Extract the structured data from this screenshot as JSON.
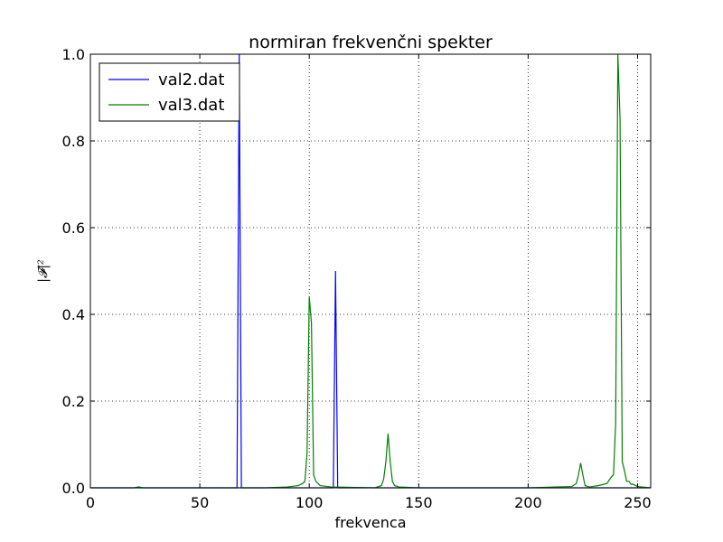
{
  "chart_data": {
    "type": "line",
    "title": "normiran frekvenčni spekter",
    "xlabel": "frekvenca",
    "ylabel": "|𝓕|²",
    "xlim": [
      0,
      256
    ],
    "ylim": [
      0,
      1.0
    ],
    "xticks": [
      0,
      50,
      100,
      150,
      200,
      250
    ],
    "yticks": [
      0.0,
      0.2,
      0.4,
      0.6,
      0.8,
      1.0
    ],
    "xtick_labels": [
      "0",
      "50",
      "100",
      "150",
      "200",
      "250"
    ],
    "ytick_labels": [
      "0.0",
      "0.2",
      "0.4",
      "0.6",
      "0.8",
      "1.0"
    ],
    "grid": true,
    "legend": "top-left",
    "series": [
      {
        "name": "val2.dat",
        "color": "#0000ff",
        "x": [
          0,
          66,
          67,
          68,
          69,
          70,
          110,
          111,
          112,
          113,
          114,
          256
        ],
        "y": [
          0,
          0,
          0.0,
          1.0,
          0.0,
          0,
          0,
          0.0,
          0.5,
          0.0,
          0,
          0
        ]
      },
      {
        "name": "val3.dat",
        "color": "#008000",
        "x": [
          0,
          20,
          22,
          24,
          80,
          90,
          95,
          97,
          98,
          99,
          100,
          101,
          102,
          103,
          105,
          110,
          130,
          133,
          134,
          135,
          136,
          137,
          138,
          139,
          141,
          150,
          200,
          220,
          222,
          223,
          224,
          225,
          226,
          228,
          232,
          236,
          238,
          239,
          240,
          241,
          242,
          243,
          244,
          245,
          246,
          247,
          248,
          250,
          252,
          256
        ],
        "y": [
          0,
          0,
          0.002,
          0,
          0,
          0.002,
          0.005,
          0.01,
          0.015,
          0.08,
          0.44,
          0.38,
          0.03,
          0.015,
          0.005,
          0.002,
          0.0,
          0.005,
          0.02,
          0.06,
          0.125,
          0.06,
          0.015,
          0.005,
          0.002,
          0.0,
          0.0,
          0.003,
          0.01,
          0.03,
          0.057,
          0.03,
          0.005,
          0.002,
          0.005,
          0.01,
          0.025,
          0.03,
          0.15,
          1.0,
          0.85,
          0.06,
          0.04,
          0.015,
          0.015,
          0.008,
          0.008,
          0.003,
          0.002,
          0.0
        ]
      }
    ]
  }
}
